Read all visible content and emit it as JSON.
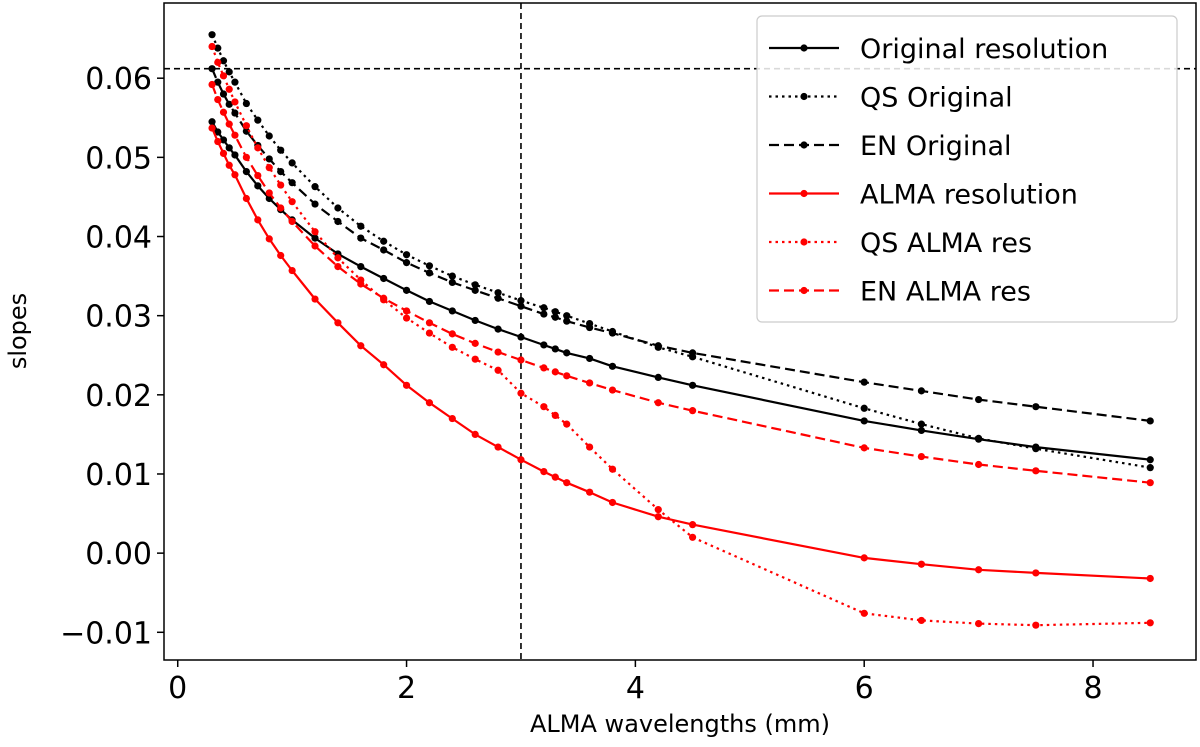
{
  "chart_data": {
    "type": "line",
    "title": "",
    "xlabel": "ALMA wavelengths (mm)",
    "ylabel": "slopes",
    "xlim": [
      -0.12,
      8.9
    ],
    "ylim": [
      -0.0135,
      0.0695
    ],
    "grid": false,
    "legend_position": "top-right",
    "xticks": [
      0,
      2,
      4,
      6,
      8
    ],
    "xtick_labels": [
      "0",
      "2",
      "4",
      "6",
      "8"
    ],
    "yticks": [
      -0.01,
      0.0,
      0.01,
      0.02,
      0.03,
      0.04,
      0.05,
      0.06
    ],
    "ytick_labels": [
      "−0.01",
      "0.00",
      "0.01",
      "0.02",
      "0.03",
      "0.04",
      "0.05",
      "0.06"
    ],
    "reference_lines": [
      {
        "orientation": "horizontal",
        "value": 0.0612,
        "style": "dashed",
        "color": "#000000"
      },
      {
        "orientation": "vertical",
        "value": 3.0,
        "style": "dashed",
        "color": "#000000"
      }
    ],
    "series": [
      {
        "name": "Original resolution",
        "color": "#000000",
        "style": "solid",
        "x": [
          0.3,
          0.35,
          0.4,
          0.45,
          0.5,
          0.6,
          0.7,
          0.8,
          0.9,
          1.0,
          1.2,
          1.4,
          1.6,
          1.8,
          2.0,
          2.2,
          2.4,
          2.6,
          2.8,
          3.0,
          3.2,
          3.3,
          3.4,
          3.6,
          3.8,
          4.2,
          4.5,
          6.0,
          6.5,
          7.0,
          7.5,
          8.5
        ],
        "values": [
          0.0545,
          0.0532,
          0.0522,
          0.0512,
          0.0503,
          0.0482,
          0.0464,
          0.0448,
          0.0434,
          0.0421,
          0.0398,
          0.0378,
          0.0362,
          0.0347,
          0.0332,
          0.0318,
          0.0306,
          0.0294,
          0.0283,
          0.0273,
          0.0263,
          0.0258,
          0.0253,
          0.0246,
          0.0236,
          0.0222,
          0.0212,
          0.0167,
          0.0155,
          0.0144,
          0.0134,
          0.0118
        ]
      },
      {
        "name": "QS Original",
        "color": "#000000",
        "style": "dotted",
        "x": [
          0.3,
          0.35,
          0.4,
          0.45,
          0.5,
          0.6,
          0.7,
          0.8,
          0.9,
          1.0,
          1.2,
          1.4,
          1.6,
          1.8,
          2.0,
          2.2,
          2.4,
          2.6,
          2.8,
          3.0,
          3.2,
          3.3,
          3.4,
          3.6,
          3.8,
          4.2,
          4.5,
          6.0,
          6.5,
          7.0,
          7.5,
          8.5
        ],
        "values": [
          0.0655,
          0.0638,
          0.0622,
          0.0608,
          0.0595,
          0.0568,
          0.0547,
          0.0527,
          0.0509,
          0.0493,
          0.0463,
          0.0436,
          0.0413,
          0.0394,
          0.0377,
          0.0363,
          0.035,
          0.0339,
          0.0329,
          0.0319,
          0.031,
          0.0305,
          0.03,
          0.029,
          0.028,
          0.026,
          0.0248,
          0.0183,
          0.0163,
          0.0145,
          0.0132,
          0.0108
        ]
      },
      {
        "name": "EN Original",
        "color": "#000000",
        "style": "dashed",
        "x": [
          0.3,
          0.35,
          0.4,
          0.45,
          0.5,
          0.6,
          0.7,
          0.8,
          0.9,
          1.0,
          1.2,
          1.4,
          1.6,
          1.8,
          2.0,
          2.2,
          2.4,
          2.6,
          2.8,
          3.0,
          3.2,
          3.3,
          3.4,
          3.6,
          3.8,
          4.2,
          4.5,
          6.0,
          6.5,
          7.0,
          7.5,
          8.5
        ],
        "values": [
          0.0612,
          0.0595,
          0.058,
          0.0567,
          0.0556,
          0.0533,
          0.0515,
          0.0498,
          0.0482,
          0.0468,
          0.0441,
          0.0419,
          0.0398,
          0.0383,
          0.0367,
          0.0354,
          0.0342,
          0.0332,
          0.0322,
          0.0312,
          0.0302,
          0.0298,
          0.0293,
          0.0285,
          0.0278,
          0.0262,
          0.0253,
          0.0216,
          0.0205,
          0.0194,
          0.0185,
          0.0167
        ]
      },
      {
        "name": "ALMA resolution",
        "color": "#ff0000",
        "style": "solid",
        "x": [
          0.3,
          0.35,
          0.4,
          0.45,
          0.5,
          0.6,
          0.7,
          0.8,
          0.9,
          1.0,
          1.2,
          1.4,
          1.6,
          1.8,
          2.0,
          2.2,
          2.4,
          2.6,
          2.8,
          3.0,
          3.2,
          3.3,
          3.4,
          3.6,
          3.8,
          4.2,
          4.5,
          6.0,
          6.5,
          7.0,
          7.5,
          8.5
        ],
        "values": [
          0.0537,
          0.052,
          0.0505,
          0.049,
          0.0478,
          0.0448,
          0.0421,
          0.0397,
          0.0376,
          0.0357,
          0.0321,
          0.0291,
          0.0262,
          0.0238,
          0.0212,
          0.019,
          0.017,
          0.015,
          0.0134,
          0.0118,
          0.0103,
          0.0096,
          0.0089,
          0.0077,
          0.0064,
          0.0046,
          0.0036,
          -0.0006,
          -0.0014,
          -0.0021,
          -0.0025,
          -0.0032
        ]
      },
      {
        "name": "QS ALMA res",
        "color": "#ff0000",
        "style": "dotted",
        "x": [
          0.3,
          0.35,
          0.4,
          0.45,
          0.5,
          0.6,
          0.7,
          0.8,
          0.9,
          1.0,
          1.2,
          1.4,
          1.6,
          1.8,
          2.0,
          2.2,
          2.4,
          2.6,
          2.8,
          3.0,
          3.2,
          3.3,
          3.4,
          3.6,
          3.8,
          4.2,
          4.5,
          6.0,
          6.5,
          7.0,
          7.5,
          8.5
        ],
        "values": [
          0.064,
          0.062,
          0.0603,
          0.0586,
          0.057,
          0.054,
          0.0512,
          0.0487,
          0.0465,
          0.0444,
          0.0406,
          0.0373,
          0.0345,
          0.032,
          0.0297,
          0.0278,
          0.026,
          0.0245,
          0.0231,
          0.0202,
          0.0185,
          0.0174,
          0.0163,
          0.0134,
          0.0106,
          0.0055,
          0.002,
          -0.0076,
          -0.0085,
          -0.0089,
          -0.0091,
          -0.0088
        ]
      },
      {
        "name": "EN ALMA res",
        "color": "#ff0000",
        "style": "dashed",
        "x": [
          0.3,
          0.35,
          0.4,
          0.45,
          0.5,
          0.6,
          0.7,
          0.8,
          0.9,
          1.0,
          1.2,
          1.4,
          1.6,
          1.8,
          2.0,
          2.2,
          2.4,
          2.6,
          2.8,
          3.0,
          3.2,
          3.3,
          3.4,
          3.6,
          3.8,
          4.2,
          4.5,
          6.0,
          6.5,
          7.0,
          7.5,
          8.5
        ],
        "values": [
          0.0592,
          0.0573,
          0.0557,
          0.0542,
          0.0528,
          0.05,
          0.0477,
          0.0455,
          0.0436,
          0.0419,
          0.0388,
          0.0362,
          0.034,
          0.0322,
          0.0306,
          0.0291,
          0.0277,
          0.0265,
          0.0254,
          0.0244,
          0.0234,
          0.0229,
          0.0224,
          0.0215,
          0.0206,
          0.019,
          0.018,
          0.0133,
          0.0122,
          0.0112,
          0.0104,
          0.0089
        ]
      }
    ]
  }
}
